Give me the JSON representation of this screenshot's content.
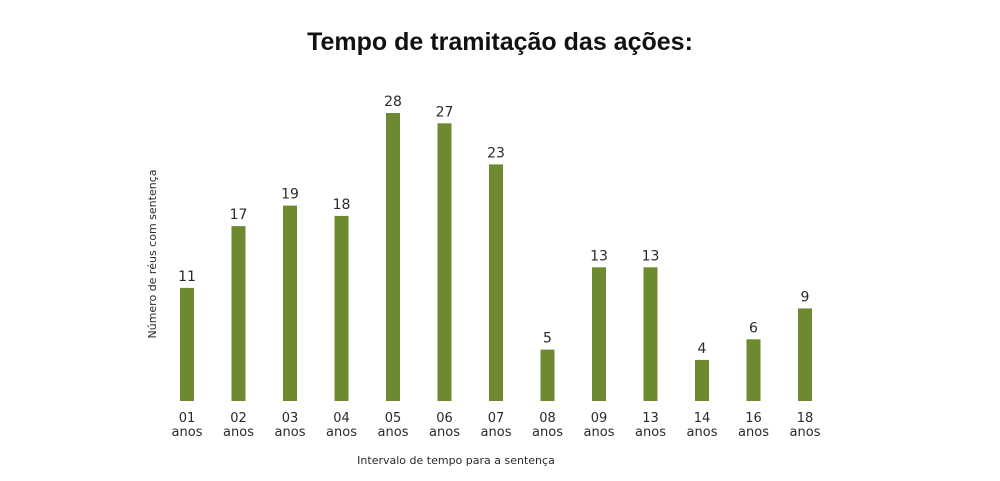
{
  "chart_data": {
    "type": "bar",
    "title": "Tempo de tramitação das ações:",
    "xlabel": "Intervalo de tempo para a sentença",
    "ylabel": "Número de réus com sentença",
    "categories": [
      [
        "01",
        "anos"
      ],
      [
        "02",
        "anos"
      ],
      [
        "03",
        "anos"
      ],
      [
        "04",
        "anos"
      ],
      [
        "05",
        "anos"
      ],
      [
        "06",
        "anos"
      ],
      [
        "07",
        "anos"
      ],
      [
        "08",
        "anos"
      ],
      [
        "09",
        "anos"
      ],
      [
        "13",
        "anos"
      ],
      [
        "14",
        "anos"
      ],
      [
        "16",
        "anos"
      ],
      [
        "18",
        "anos"
      ]
    ],
    "values": [
      11,
      17,
      19,
      18,
      28,
      27,
      23,
      5,
      13,
      13,
      4,
      6,
      9
    ],
    "ylim": [
      0,
      28
    ],
    "grid": false,
    "bar_color": "#6d8a30"
  }
}
